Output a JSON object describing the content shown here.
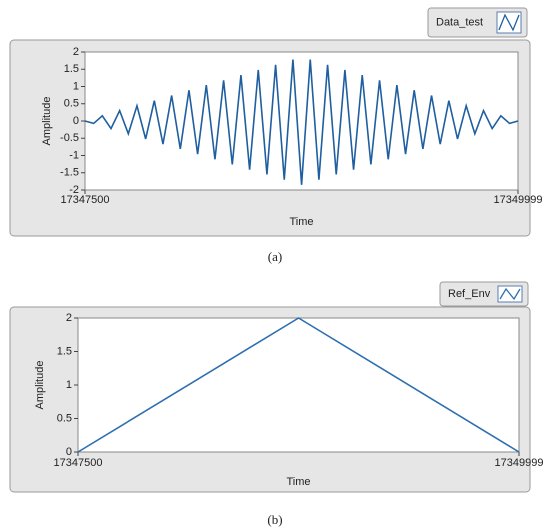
{
  "chart_data": [
    {
      "type": "line",
      "caption": "(a)",
      "x_label": "Time",
      "y_label": "Amplitude",
      "xlim": [
        17347500,
        17349999
      ],
      "xticks": [
        17347500,
        17349999
      ],
      "ylim": [
        -2,
        2
      ],
      "yticks": [
        -2,
        -1.5,
        -1,
        -0.5,
        0,
        0.5,
        1,
        1.5,
        2
      ],
      "series": [
        {
          "name": "Data_test",
          "color": "#1f5f9f",
          "x": [
            17347500,
            17347550,
            17347600,
            17347650,
            17347700,
            17347750,
            17347800,
            17347850,
            17347900,
            17347950,
            17348000,
            17348050,
            17348100,
            17348150,
            17348200,
            17348250,
            17348300,
            17348350,
            17348400,
            17348450,
            17348500,
            17348550,
            17348600,
            17348650,
            17348700,
            17348750,
            17348800,
            17348850,
            17348900,
            17348950,
            17349000,
            17349050,
            17349100,
            17349150,
            17349200,
            17349250,
            17349300,
            17349350,
            17349400,
            17349450,
            17349500,
            17349550,
            17349600,
            17349650,
            17349700,
            17349750,
            17349800,
            17349850,
            17349900,
            17349950,
            17349999
          ],
          "values": [
            0,
            -0.07,
            0.15,
            -0.22,
            0.3,
            -0.37,
            0.44,
            -0.52,
            0.59,
            -0.67,
            0.74,
            -0.81,
            0.89,
            -0.96,
            1.04,
            -1.11,
            1.18,
            -1.26,
            1.33,
            -1.41,
            1.48,
            -1.55,
            1.63,
            -1.7,
            1.78,
            -1.85,
            1.78,
            -1.7,
            1.63,
            -1.55,
            1.48,
            -1.41,
            1.33,
            -1.26,
            1.18,
            -1.11,
            1.04,
            -0.96,
            0.89,
            -0.81,
            0.74,
            -0.67,
            0.59,
            -0.52,
            0.44,
            -0.37,
            0.3,
            -0.22,
            0.15,
            -0.07,
            0
          ]
        }
      ]
    },
    {
      "type": "line",
      "caption": "(b)",
      "x_label": "Time",
      "y_label": "Amplitude",
      "xlim": [
        17347500,
        17349999
      ],
      "xticks": [
        17347500,
        17349999
      ],
      "ylim": [
        0,
        2
      ],
      "yticks": [
        0,
        0.5,
        1,
        1.5,
        2
      ],
      "series": [
        {
          "name": "Ref_Env",
          "color": "#2e6fb0",
          "x": [
            17347500,
            17348750,
            17349999
          ],
          "values": [
            0,
            2,
            0
          ]
        }
      ]
    }
  ]
}
